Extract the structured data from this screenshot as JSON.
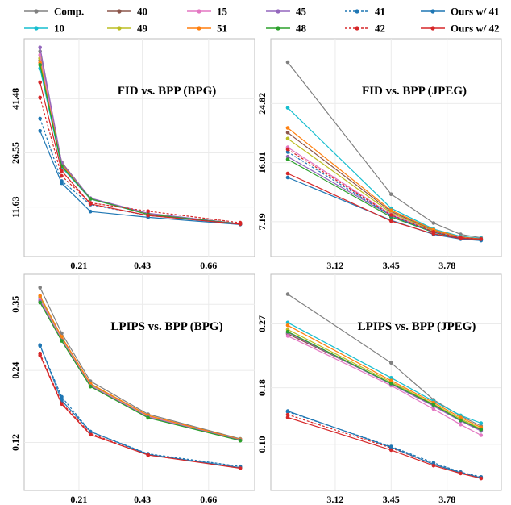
{
  "legend": [
    {
      "name": "Comp.",
      "color": "#808080",
      "dash": false
    },
    {
      "name": "10",
      "color": "#17becf",
      "dash": false
    },
    {
      "name": "40",
      "color": "#8c564b",
      "dash": false
    },
    {
      "name": "49",
      "color": "#bcbd22",
      "dash": false
    },
    {
      "name": "15",
      "color": "#e377c2",
      "dash": false
    },
    {
      "name": "51",
      "color": "#ff7f0e",
      "dash": false
    },
    {
      "name": "45",
      "color": "#9467bd",
      "dash": false
    },
    {
      "name": "48",
      "color": "#2ca02c",
      "dash": false
    },
    {
      "name": "41",
      "color": "#1f77b4",
      "dash": true
    },
    {
      "name": "42",
      "color": "#d62728",
      "dash": true
    },
    {
      "name": "Ours w/ 41",
      "color": "#1f77b4",
      "dash": false
    },
    {
      "name": "Ours w/ 42",
      "color": "#d62728",
      "dash": false
    }
  ],
  "chart_data": [
    {
      "type": "line",
      "title": "FID vs. BPP (BPG)",
      "xticks": [
        "0.21",
        "0.43",
        "0.66"
      ],
      "xtick_values": [
        0.21,
        0.43,
        0.66
      ],
      "yticks": [
        "11.63",
        "26.55",
        "41.48"
      ],
      "ytick_values": [
        11.63,
        26.55,
        41.48
      ],
      "xlim": [
        0.02,
        0.82
      ],
      "ylim": [
        -2,
        58
      ],
      "x": [
        0.075,
        0.15,
        0.25,
        0.45,
        0.77
      ],
      "series": [
        {
          "name": "Comp.",
          "values": [
            54.5,
            23.7,
            14.0,
            9.8,
            7.0
          ]
        },
        {
          "name": "10",
          "values": [
            49.8,
            22.6,
            13.8,
            9.6,
            6.9
          ]
        },
        {
          "name": "40",
          "values": [
            52.0,
            24.0,
            14.0,
            9.8,
            7.0
          ]
        },
        {
          "name": "49",
          "values": [
            52.6,
            23.2,
            13.9,
            9.7,
            7.0
          ]
        },
        {
          "name": "15",
          "values": [
            53.5,
            22.9,
            13.9,
            9.6,
            6.9
          ]
        },
        {
          "name": "51",
          "values": [
            51.4,
            23.4,
            13.9,
            9.7,
            7.0
          ]
        },
        {
          "name": "45",
          "values": [
            55.6,
            23.8,
            14.1,
            9.9,
            7.0
          ]
        },
        {
          "name": "48",
          "values": [
            50.8,
            22.9,
            13.9,
            9.6,
            7.0
          ]
        },
        {
          "name": "41",
          "values": [
            36.0,
            18.8,
            12.3,
            9.3,
            7.0
          ]
        },
        {
          "name": "42",
          "values": [
            41.8,
            20.2,
            12.8,
            10.5,
            7.3
          ]
        },
        {
          "name": "Ours w/ 41",
          "values": [
            32.6,
            18.2,
            10.4,
            8.8,
            6.8
          ]
        },
        {
          "name": "Ours w/ 42",
          "values": [
            46.0,
            21.6,
            12.5,
            9.3,
            6.9
          ]
        }
      ]
    },
    {
      "type": "line",
      "title": "FID vs. BPP (JPEG)",
      "xticks": [
        "3.12",
        "3.45",
        "3.78"
      ],
      "xtick_values": [
        3.12,
        3.45,
        3.78
      ],
      "yticks": [
        "7.19",
        "16.01",
        "24.82"
      ],
      "ytick_values": [
        7.19,
        16.01,
        24.82
      ],
      "xlim": [
        2.74,
        4.1
      ],
      "ylim": [
        2.0,
        34.5
      ],
      "x": [
        2.84,
        3.45,
        3.7,
        3.86,
        3.98
      ],
      "series": [
        {
          "name": "Comp.",
          "values": [
            31.0,
            11.3,
            7.0,
            5.3,
            4.8
          ]
        },
        {
          "name": "10",
          "values": [
            24.2,
            9.2,
            6.1,
            5.0,
            4.7
          ]
        },
        {
          "name": "40",
          "values": [
            20.5,
            8.7,
            5.9,
            4.9,
            4.6
          ]
        },
        {
          "name": "49",
          "values": [
            19.6,
            8.5,
            5.8,
            4.8,
            4.6
          ]
        },
        {
          "name": "15",
          "values": [
            18.3,
            8.3,
            5.7,
            4.8,
            4.5
          ]
        },
        {
          "name": "51",
          "values": [
            21.2,
            8.9,
            6.0,
            4.9,
            4.6
          ]
        },
        {
          "name": "45",
          "values": [
            16.9,
            8.1,
            5.6,
            4.8,
            4.5
          ]
        },
        {
          "name": "48",
          "values": [
            16.5,
            7.9,
            5.6,
            4.7,
            4.5
          ]
        },
        {
          "name": "41",
          "values": [
            17.6,
            8.1,
            5.6,
            4.7,
            4.5
          ]
        },
        {
          "name": "42",
          "values": [
            18.0,
            8.2,
            5.7,
            4.8,
            4.6
          ]
        },
        {
          "name": "Ours w/ 41",
          "values": [
            13.8,
            7.4,
            5.3,
            4.6,
            4.4
          ]
        },
        {
          "name": "Ours w/ 42",
          "values": [
            14.4,
            7.3,
            5.4,
            4.7,
            4.6
          ]
        }
      ]
    },
    {
      "type": "line",
      "title": "LPIPS vs. BPP (BPG)",
      "xticks": [
        "0.21",
        "0.43",
        "0.66"
      ],
      "xtick_values": [
        0.21,
        0.43,
        0.66
      ],
      "yticks": [
        "0.12",
        "0.24",
        "0.35"
      ],
      "ytick_values": [
        0.12,
        0.24,
        0.35
      ],
      "xlim": [
        0.02,
        0.82
      ],
      "ylim": [
        0.04,
        0.4
      ],
      "x": [
        0.075,
        0.15,
        0.25,
        0.45,
        0.77
      ],
      "series": [
        {
          "name": "Comp.",
          "values": [
            0.378,
            0.302,
            0.222,
            0.167,
            0.126
          ]
        },
        {
          "name": "10",
          "values": [
            0.362,
            0.295,
            0.217,
            0.164,
            0.125
          ]
        },
        {
          "name": "40",
          "values": [
            0.357,
            0.292,
            0.216,
            0.163,
            0.124
          ]
        },
        {
          "name": "49",
          "values": [
            0.36,
            0.293,
            0.216,
            0.164,
            0.125
          ]
        },
        {
          "name": "15",
          "values": [
            0.358,
            0.292,
            0.215,
            0.163,
            0.124
          ]
        },
        {
          "name": "51",
          "values": [
            0.364,
            0.296,
            0.218,
            0.165,
            0.125
          ]
        },
        {
          "name": "45",
          "values": [
            0.355,
            0.29,
            0.214,
            0.162,
            0.124
          ]
        },
        {
          "name": "48",
          "values": [
            0.353,
            0.289,
            0.213,
            0.161,
            0.123
          ]
        },
        {
          "name": "41",
          "values": [
            0.281,
            0.196,
            0.138,
            0.101,
            0.08
          ]
        },
        {
          "name": "42",
          "values": [
            0.268,
            0.186,
            0.135,
            0.099,
            0.078
          ]
        },
        {
          "name": "Ours w/ 41",
          "values": [
            0.282,
            0.19,
            0.138,
            0.1,
            0.078
          ]
        },
        {
          "name": "Ours w/ 42",
          "values": [
            0.265,
            0.184,
            0.133,
            0.099,
            0.077
          ]
        }
      ]
    },
    {
      "type": "line",
      "title": "LPIPS vs. BPP (JPEG)",
      "xticks": [
        "3.12",
        "3.45",
        "3.78"
      ],
      "xtick_values": [
        3.12,
        3.45,
        3.78
      ],
      "yticks": [
        "0.10",
        "0.18",
        "0.27"
      ],
      "ytick_values": [
        0.1,
        0.18,
        0.27
      ],
      "xlim": [
        2.74,
        4.1
      ],
      "ylim": [
        0.035,
        0.34
      ],
      "x": [
        2.84,
        3.45,
        3.7,
        3.86,
        3.98
      ],
      "series": [
        {
          "name": "Comp.",
          "values": [
            0.312,
            0.215,
            0.163,
            0.14,
            0.126
          ]
        },
        {
          "name": "10",
          "values": [
            0.272,
            0.194,
            0.161,
            0.141,
            0.13
          ]
        },
        {
          "name": "40",
          "values": [
            0.256,
            0.186,
            0.155,
            0.134,
            0.12
          ]
        },
        {
          "name": "49",
          "values": [
            0.262,
            0.188,
            0.157,
            0.136,
            0.122
          ]
        },
        {
          "name": "15",
          "values": [
            0.253,
            0.183,
            0.15,
            0.128,
            0.113
          ]
        },
        {
          "name": "51",
          "values": [
            0.268,
            0.19,
            0.159,
            0.138,
            0.124
          ]
        },
        {
          "name": "45",
          "values": [
            0.258,
            0.185,
            0.154,
            0.133,
            0.119
          ]
        },
        {
          "name": "48",
          "values": [
            0.259,
            0.186,
            0.156,
            0.134,
            0.121
          ]
        },
        {
          "name": "41",
          "values": [
            0.146,
            0.097,
            0.074,
            0.061,
            0.054
          ]
        },
        {
          "name": "42",
          "values": [
            0.142,
            0.095,
            0.072,
            0.06,
            0.053
          ]
        },
        {
          "name": "Ours w/ 41",
          "values": [
            0.147,
            0.096,
            0.072,
            0.06,
            0.053
          ]
        },
        {
          "name": "Ours w/ 42",
          "values": [
            0.138,
            0.092,
            0.07,
            0.059,
            0.052
          ]
        }
      ]
    }
  ]
}
